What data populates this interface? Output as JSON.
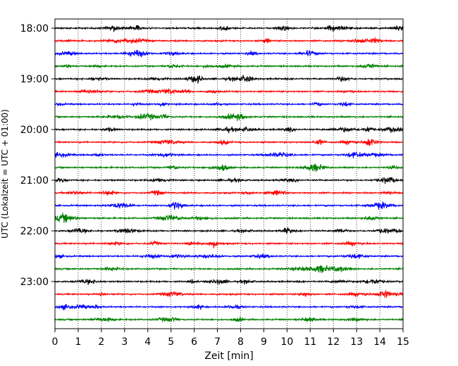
{
  "chart_data": {
    "type": "line",
    "title": "",
    "xlabel": "Zeit  [min]",
    "ylabel": "UTC (Lokalzeit = UTC + 01:00)",
    "xlim": [
      0,
      15
    ],
    "x_ticks": [
      0,
      1,
      2,
      3,
      4,
      5,
      6,
      7,
      8,
      9,
      10,
      11,
      12,
      13,
      14,
      15
    ],
    "y_tick_labels": [
      "18:00",
      "19:00",
      "20:00",
      "21:00",
      "22:00",
      "23:00"
    ],
    "grid": "vertical-dotted",
    "trace_interval_min": 15,
    "trace_count": 24,
    "color_cycle": [
      "#000000",
      "#ff0000",
      "#0000ff",
      "#008000"
    ],
    "trace_start_times": [
      "18:00",
      "18:15",
      "18:30",
      "18:45",
      "19:00",
      "19:15",
      "19:30",
      "19:45",
      "20:00",
      "20:15",
      "20:30",
      "20:45",
      "21:00",
      "21:15",
      "21:30",
      "21:45",
      "22:00",
      "22:15",
      "22:30",
      "22:45",
      "23:00",
      "23:15",
      "23:30",
      "23:45"
    ],
    "notable_events": [
      {
        "trace": "18:00",
        "x_min": 7.3
      },
      {
        "trace": "19:00",
        "x_min": 8.3
      },
      {
        "trace": "20:00",
        "x_min": 13.5
      },
      {
        "trace": "22:00",
        "x_min": 10.0
      },
      {
        "trace": "23:15",
        "x_min": 14.2
      }
    ]
  }
}
